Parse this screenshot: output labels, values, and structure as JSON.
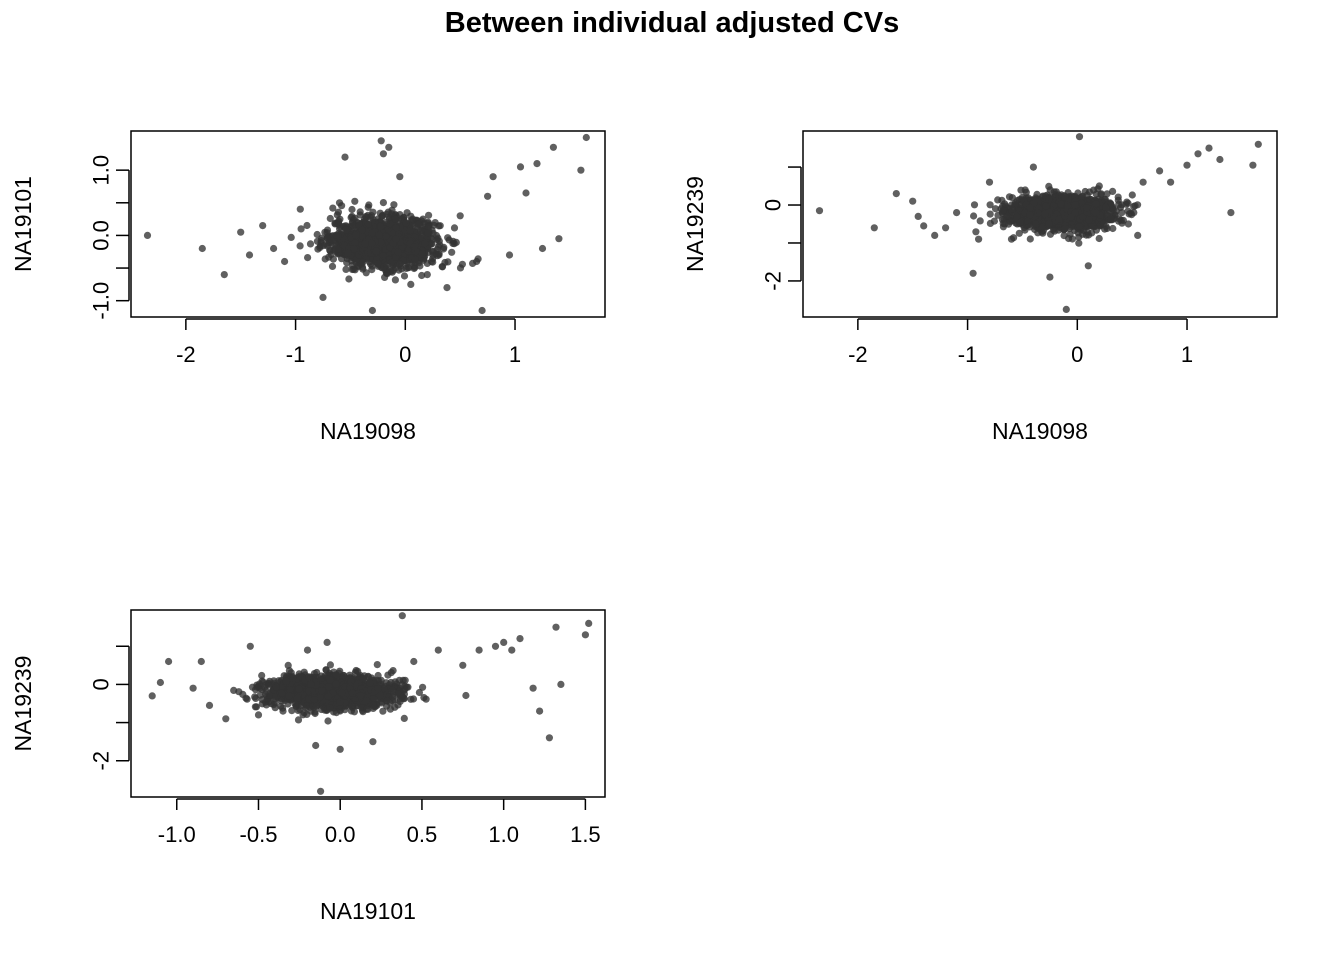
{
  "figure": {
    "title": "Between individual adjusted CVs",
    "point_color": "#333333"
  },
  "chart_data": [
    {
      "type": "scatter",
      "xlabel": "NA19098",
      "ylabel": "NA19101",
      "xlim": [
        -2.5,
        1.82
      ],
      "ylim": [
        -1.25,
        1.6
      ],
      "xticks": [
        -2,
        -1,
        0,
        1
      ],
      "xtick_labels": [
        "-2",
        "-1",
        "0",
        "1"
      ],
      "yticks": [
        -1.0,
        -0.5,
        0.0,
        0.5,
        1.0
      ],
      "ytick_labels": [
        "-1.0",
        "",
        "0.0",
        "",
        "1.0"
      ],
      "cluster": {
        "center": [
          -0.2,
          -0.1
        ],
        "spread": [
          0.24,
          0.19
        ],
        "count": 1400
      },
      "outliers": {
        "x": [
          -2.35,
          -1.85,
          -1.65,
          -1.5,
          -1.42,
          -1.3,
          -1.2,
          -1.1,
          -0.95,
          -0.75,
          -0.6,
          -0.55,
          -0.45,
          -0.3,
          -0.22,
          -0.2,
          -0.15,
          -0.05,
          0.05,
          0.2,
          0.38,
          0.5,
          0.65,
          0.7,
          0.75,
          0.8,
          0.95,
          1.05,
          1.1,
          1.2,
          1.25,
          1.35,
          1.4,
          1.6,
          1.65
        ],
        "y": [
          0.0,
          -0.2,
          -0.6,
          0.05,
          -0.3,
          0.15,
          -0.2,
          -0.4,
          0.1,
          -0.95,
          0.5,
          1.2,
          0.0,
          -1.15,
          1.45,
          1.25,
          1.35,
          0.9,
          -0.75,
          -0.6,
          -0.8,
          0.3,
          -0.4,
          -1.15,
          0.6,
          0.9,
          -0.3,
          1.05,
          0.65,
          1.1,
          -0.2,
          1.35,
          -0.05,
          1.0,
          1.5
        ]
      }
    },
    {
      "type": "scatter",
      "xlabel": "NA19098",
      "ylabel": "NA19239",
      "xlim": [
        -2.5,
        1.82
      ],
      "ylim": [
        -2.95,
        1.95
      ],
      "xticks": [
        -2,
        -1,
        0,
        1
      ],
      "xtick_labels": [
        "-2",
        "-1",
        "0",
        "1"
      ],
      "yticks": [
        -2,
        -1,
        0,
        1
      ],
      "ytick_labels": [
        "-2",
        "",
        "0",
        ""
      ],
      "cluster": {
        "center": [
          -0.15,
          -0.2
        ],
        "spread": [
          0.24,
          0.22
        ],
        "count": 1400
      },
      "outliers": {
        "x": [
          -2.35,
          -1.85,
          -1.65,
          -1.5,
          -1.45,
          -1.4,
          -1.3,
          -1.2,
          -1.1,
          -0.95,
          -0.9,
          -0.8,
          -0.6,
          -0.4,
          -0.25,
          -0.1,
          0.02,
          0.1,
          0.2,
          0.4,
          0.55,
          0.6,
          0.75,
          0.85,
          1.0,
          1.1,
          1.2,
          1.3,
          1.4,
          1.6,
          1.65
        ],
        "y": [
          -0.15,
          -0.6,
          0.3,
          0.1,
          -0.3,
          -0.55,
          -0.8,
          -0.6,
          -0.2,
          -1.8,
          -0.9,
          0.6,
          -0.9,
          1.0,
          -1.9,
          -2.75,
          1.8,
          -1.6,
          0.5,
          -0.4,
          -0.8,
          0.6,
          0.9,
          0.6,
          1.05,
          1.35,
          1.5,
          1.2,
          -0.2,
          1.05,
          1.6
        ]
      }
    },
    {
      "type": "scatter",
      "xlabel": "NA19101",
      "ylabel": "NA19239",
      "xlim": [
        -1.28,
        1.62
      ],
      "ylim": [
        -2.95,
        1.95
      ],
      "xticks": [
        -1.0,
        -0.5,
        0.0,
        0.5,
        1.0,
        1.5
      ],
      "xtick_labels": [
        "-1.0",
        "-0.5",
        "0.0",
        "0.5",
        "1.0",
        "1.5"
      ],
      "yticks": [
        -2,
        -1,
        0,
        1
      ],
      "ytick_labels": [
        "-2",
        "",
        "0",
        ""
      ],
      "cluster": {
        "center": [
          -0.05,
          -0.2
        ],
        "spread": [
          0.2,
          0.22
        ],
        "count": 1400
      },
      "outliers": {
        "x": [
          -1.15,
          -1.1,
          -1.05,
          -0.9,
          -0.85,
          -0.8,
          -0.7,
          -0.55,
          -0.5,
          -0.35,
          -0.2,
          -0.15,
          -0.12,
          -0.08,
          0.0,
          0.2,
          0.38,
          0.45,
          0.6,
          0.75,
          0.85,
          0.95,
          1.0,
          1.05,
          1.1,
          1.18,
          1.22,
          1.28,
          1.32,
          1.35,
          1.5,
          1.52
        ],
        "y": [
          -0.3,
          0.05,
          0.6,
          -0.1,
          0.6,
          -0.55,
          -0.9,
          1.0,
          -0.8,
          -0.7,
          0.9,
          -1.6,
          -2.8,
          1.1,
          -1.7,
          -1.5,
          1.8,
          0.6,
          0.9,
          0.5,
          0.9,
          1.0,
          1.1,
          0.9,
          1.2,
          -0.1,
          -0.7,
          -1.4,
          1.5,
          0.0,
          1.3,
          1.6
        ]
      }
    }
  ]
}
